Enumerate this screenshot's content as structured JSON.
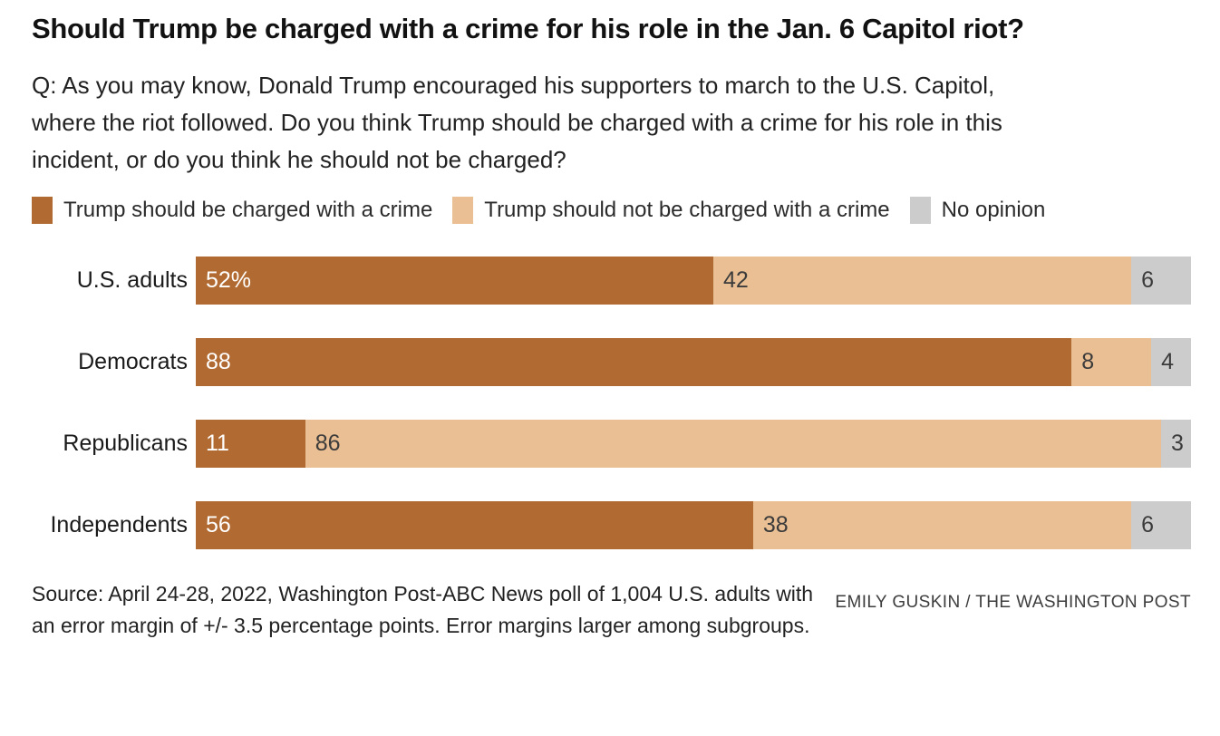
{
  "header": {
    "title": "Should Trump be charged with a crime for his role in the Jan. 6 Capitol riot?",
    "question": "Q: As you may know, Donald Trump encouraged his supporters to march to the U.S. Capitol, where the riot followed. Do you think Trump should be charged with a crime for his role in this incident, or do you think he should not be charged?"
  },
  "chart_data": {
    "type": "bar",
    "orientation": "horizontal",
    "stacked": true,
    "unit": "percent",
    "xlim": [
      0,
      100
    ],
    "grid": false,
    "legend_position": "top",
    "categories": [
      "U.S. adults",
      "Democrats",
      "Republicans",
      "Independents"
    ],
    "series": [
      {
        "name": "Trump should be charged with a crime",
        "color": "#b16a31",
        "label_color": "#ffffff",
        "values": [
          52,
          88,
          11,
          56
        ]
      },
      {
        "name": "Trump should not be charged with a crime",
        "color": "#e9bf93",
        "label_color": "#3b3b3b",
        "values": [
          42,
          8,
          86,
          38
        ]
      },
      {
        "name": "No opinion",
        "color": "#cccccc",
        "label_color": "#3b3b3b",
        "values": [
          6,
          4,
          3,
          6
        ]
      }
    ],
    "value_labels": [
      [
        "52%",
        "42",
        "6"
      ],
      [
        "88",
        "8",
        "4"
      ],
      [
        "11",
        "86",
        "3"
      ],
      [
        "56",
        "38",
        "6"
      ]
    ]
  },
  "footer": {
    "source": "Source: April 24-28, 2022, Washington Post-ABC News poll of 1,004 U.S. adults with an error margin of +/- 3.5 percentage points. Error margins larger among subgroups.",
    "credit": "EMILY GUSKIN / THE WASHINGTON POST"
  }
}
